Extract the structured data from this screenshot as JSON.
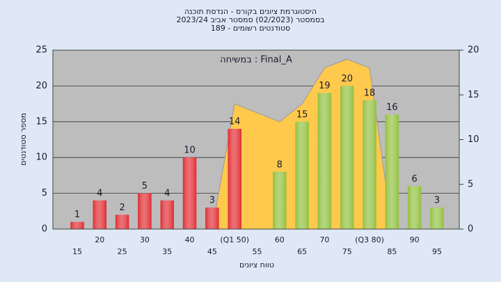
{
  "chart_data": {
    "type": "bar",
    "title": [
      "היסטוגרמת ציונים בקורס - הנדסת תוכנה",
      "בסמסטר  (02/2023)  סמסטר אביב 2023/24",
      "סטודנטים רשומים - 189"
    ],
    "annotation": "Final_A : במשיחה",
    "x_label": "טווח ציונים",
    "y_label": "מספר סטודנטים",
    "categories": [
      "15",
      "20",
      "25",
      "30",
      "35",
      "40",
      "45",
      "(Q1 50)",
      "55",
      "60",
      "65",
      "70",
      "75",
      "(Q3 80)",
      "85",
      "90",
      "95"
    ],
    "series": [
      {
        "color": "#e0282e",
        "values": [
          1,
          4,
          2,
          5,
          4,
          10,
          3,
          14,
          null,
          null,
          null,
          null,
          null,
          null,
          null,
          null,
          null
        ]
      },
      {
        "color": "#8fbf3a",
        "values": [
          null,
          null,
          null,
          null,
          null,
          null,
          null,
          null,
          null,
          8,
          15,
          19,
          20,
          18,
          16,
          6,
          3
        ]
      },
      {
        "type": "area",
        "axis": "y2",
        "color": "#ffc94d",
        "values": [
          null,
          null,
          null,
          null,
          null,
          null,
          0,
          14,
          13,
          12,
          14,
          18,
          19,
          18,
          0,
          null,
          null
        ]
      }
    ],
    "ylim": [
      0,
      25
    ],
    "yticks": [
      0,
      5,
      10,
      15,
      20,
      25
    ],
    "y2lim": [
      0,
      20
    ],
    "y2ticks": [
      0,
      5,
      10,
      15,
      20
    ],
    "grid": true
  }
}
